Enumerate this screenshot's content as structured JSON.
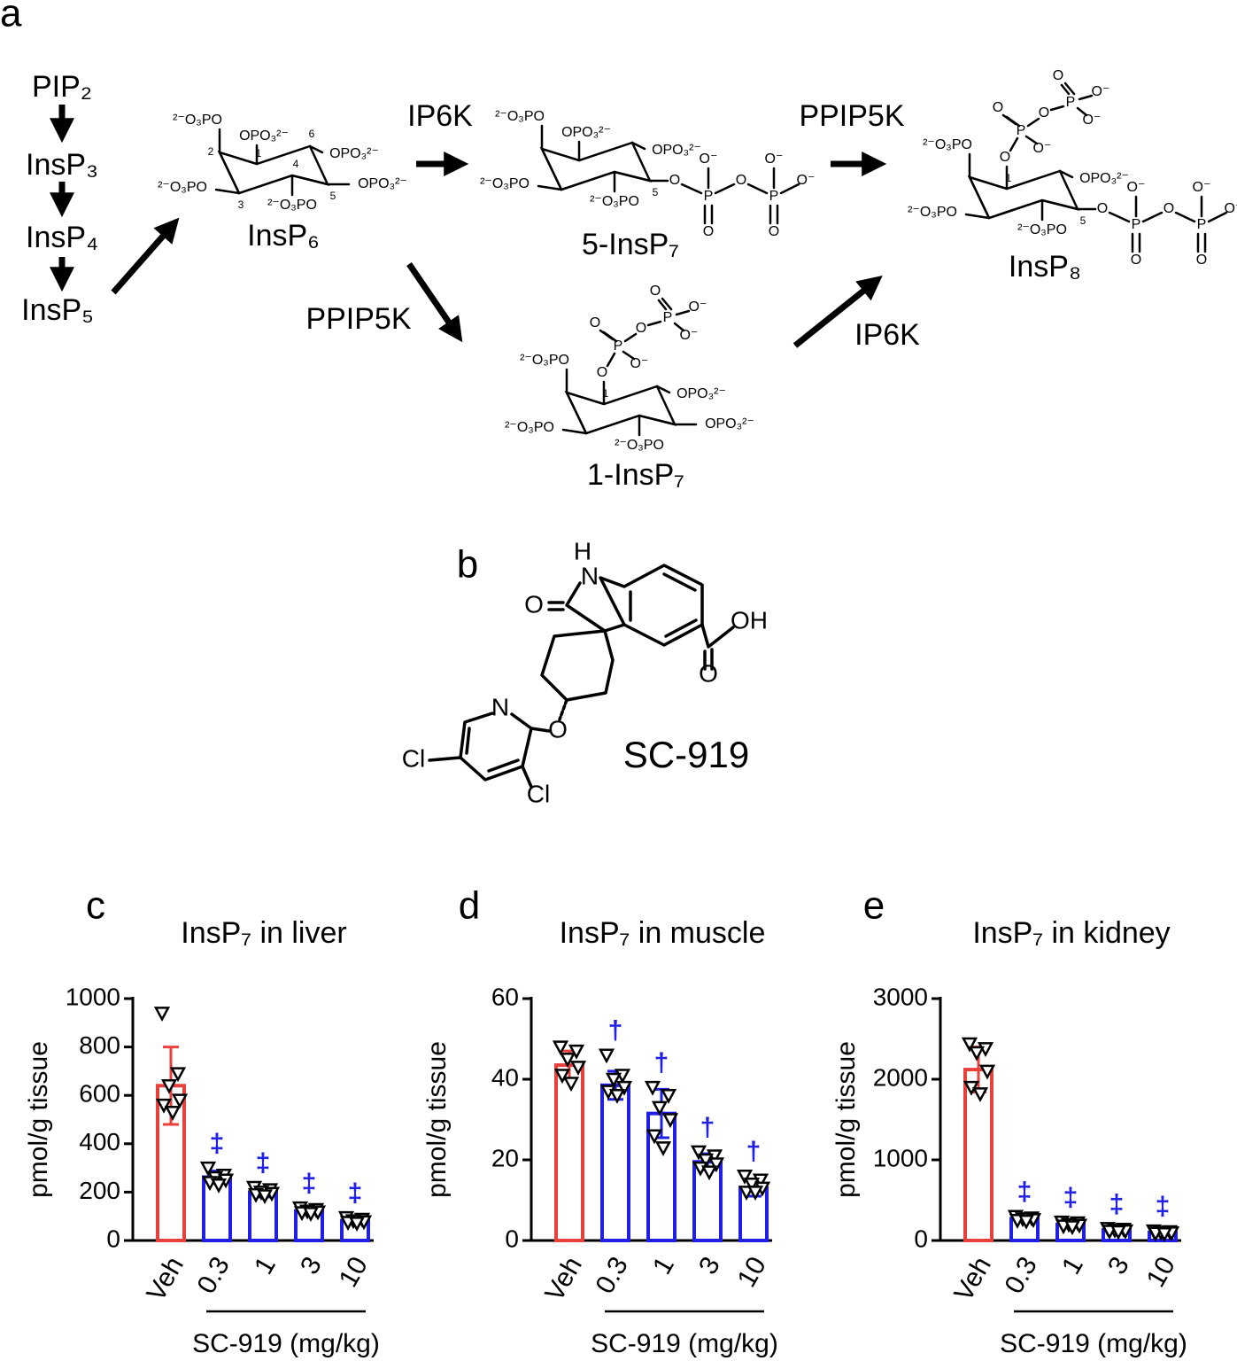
{
  "pathway": {
    "label": "a",
    "chain": [
      "PIP₂",
      "InsP₃",
      "InsP₄",
      "InsP₅"
    ],
    "enzymes": [
      "IP6K",
      "PPIP5K",
      "PPIP5K",
      "IP6K"
    ],
    "compounds": [
      {
        "name": "InsP₆",
        "labels": [
          "²⁻O₃PO",
          "OPO₃²⁻",
          "OPO₃²⁻",
          "OPO₃²⁻",
          "²⁻O₃PO",
          "²⁻O₃PO",
          "1",
          "2",
          "3",
          "4",
          "5",
          "6"
        ]
      },
      {
        "name": "5-InsP₇",
        "labels": [
          "²⁻O₃PO",
          "OPO₃²⁻",
          "OPO₃²⁻",
          "²⁻O₃PO",
          "²⁻O₃PO",
          "5",
          "O",
          "P",
          "O⁻",
          "O",
          "O",
          "P",
          "O⁻",
          "O",
          "O⁻"
        ]
      },
      {
        "name": "1-InsP₇",
        "labels": [
          "²⁻O₃PO",
          "OPO₃²⁻",
          "OPO₃²⁻",
          "²⁻O₃PO",
          "²⁻O₃PO",
          "1",
          "O",
          "P",
          "O",
          "O⁻",
          "O",
          "P",
          "O",
          "O⁻",
          "O⁻"
        ]
      },
      {
        "name": "InsP₈",
        "labels": [
          "²⁻O₃PO",
          "OPO₃²⁻",
          "²⁻O₃PO",
          "²⁻O₃PO",
          "1",
          "5",
          "O",
          "P",
          "O",
          "O⁻",
          "O",
          "P",
          "O",
          "O⁻",
          "O⁻",
          "O",
          "P",
          "O⁻",
          "O",
          "O",
          "P",
          "O⁻",
          "O",
          "O⁻"
        ]
      }
    ]
  },
  "compound": {
    "label": "b",
    "atoms": [
      "H",
      "N",
      "O",
      "OH",
      "O",
      "N",
      "O",
      "Cl",
      "Cl"
    ],
    "name": "SC-919"
  },
  "chart_data": [
    {
      "type": "bar",
      "label": "c",
      "title": "InsP₇ in liver",
      "ylabel": "pmol/g tissue",
      "xlabel": "SC-919 (mg/kg)",
      "categories": [
        "Veh",
        "0.3",
        "1",
        "3",
        "10"
      ],
      "values": [
        640,
        262,
        200,
        122,
        82
      ],
      "errors": [
        160,
        25,
        20,
        12,
        10
      ],
      "points": [
        [
          940,
          690,
          640,
          580,
          560,
          530
        ],
        [
          300,
          270,
          260,
          250,
          240,
          230
        ],
        [
          220,
          210,
          200,
          195,
          190,
          185
        ],
        [
          135,
          128,
          122,
          118,
          115,
          112
        ],
        [
          95,
          88,
          82,
          78,
          75,
          72
        ]
      ],
      "bar_colors": [
        "#e8413c",
        "#1f1fe6",
        "#1f1fe6",
        "#1f1fe6",
        "#1f1fe6"
      ],
      "annotations": [
        null,
        "‡",
        "‡",
        "‡",
        "‡"
      ],
      "annotation_color": "#1f1fe6",
      "ylim": [
        0,
        1000
      ],
      "yticks": [
        0,
        200,
        400,
        600,
        800,
        1000
      ]
    },
    {
      "type": "bar",
      "label": "d",
      "title": "InsP₇ in muscle",
      "ylabel": "pmol/g tissue",
      "xlabel": "SC-919 (mg/kg)",
      "categories": [
        "Veh",
        "0.3",
        "1",
        "3",
        "10"
      ],
      "values": [
        43.5,
        38.5,
        31.5,
        19.5,
        13
      ],
      "errors": [
        3.5,
        3.5,
        6,
        2,
        2
      ],
      "points": [
        [
          48,
          47,
          45,
          43,
          41,
          39
        ],
        [
          46,
          41,
          40,
          38,
          37,
          36
        ],
        [
          38,
          36,
          33,
          30,
          26,
          23
        ],
        [
          22,
          21,
          20,
          19,
          18,
          17
        ],
        [
          16,
          15,
          14,
          13,
          12,
          12
        ]
      ],
      "bar_colors": [
        "#e8413c",
        "#1f1fe6",
        "#1f1fe6",
        "#1f1fe6",
        "#1f1fe6"
      ],
      "annotations": [
        null,
        "†",
        "†",
        "†",
        "†"
      ],
      "annotation_color": "#1f1fe6",
      "ylim": [
        0,
        60
      ],
      "yticks": [
        0,
        20,
        40,
        60
      ]
    },
    {
      "type": "bar",
      "label": "e",
      "title": "InsP₇ in kidney",
      "ylabel": "pmol/g tissue",
      "xlabel": "SC-919 (mg/kg)",
      "categories": [
        "Veh",
        "0.3",
        "1",
        "3",
        "10"
      ],
      "values": [
        2120,
        270,
        200,
        130,
        100
      ],
      "errors": [
        280,
        30,
        30,
        20,
        20
      ],
      "points": [
        [
          2440,
          2380,
          2330,
          2100,
          1900,
          1820
        ],
        [
          300,
          280,
          270,
          260,
          250,
          240
        ],
        [
          230,
          220,
          200,
          190,
          180,
          170
        ],
        [
          150,
          140,
          130,
          120,
          115,
          110
        ],
        [
          120,
          110,
          100,
          95,
          90,
          85
        ]
      ],
      "bar_colors": [
        "#e8413c",
        "#1f1fe6",
        "#1f1fe6",
        "#1f1fe6",
        "#1f1fe6"
      ],
      "annotations": [
        null,
        "‡",
        "‡",
        "‡",
        "‡"
      ],
      "annotation_color": "#1f1fe6",
      "ylim": [
        0,
        3000
      ],
      "yticks": [
        0,
        1000,
        2000,
        3000
      ]
    }
  ]
}
